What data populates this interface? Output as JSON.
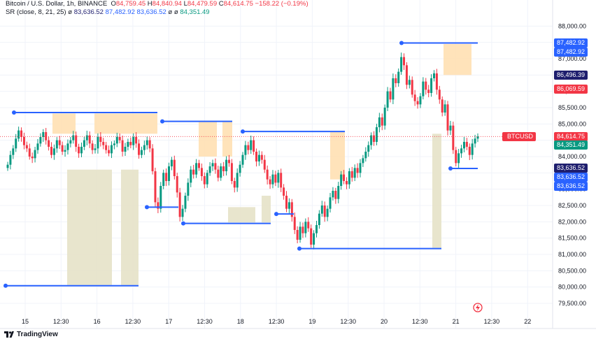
{
  "header": {
    "symbol": "Bitcoin / U.S. Dollar, 1h, BINANCE",
    "o_label": "O",
    "o_value": "84,759.45",
    "h_label": "H",
    "h_value": "84,840.94",
    "l_label": "L",
    "l_value": "84,479.59",
    "c_label": "C",
    "c_value": "84,614.75",
    "change": "−158.22 (−0.19%)",
    "indicator_name": "SR (close, 8, 21, 25)",
    "indicator_sep": "ø",
    "ind_v1": "83,636.52",
    "ind_v2": "87,482.92",
    "ind_v3": "83,636.52",
    "ind_v4": "ø",
    "ind_v5": "ø",
    "ind_v6": "84,351.49"
  },
  "branding": {
    "name": "TradingView"
  },
  "colors": {
    "up": "#089981",
    "down": "#f23645",
    "resistance": "#2962ff",
    "resistance_light": "#b2ddff",
    "zone_orange": "#ffe0b2",
    "zone_olive": "#e6e2c8",
    "accent_navy": "#1e1e6e"
  },
  "price_labels": [
    {
      "text": "87,482.92",
      "price": 87482.92,
      "bg": "#2962ff"
    },
    {
      "text": "87,482.92",
      "price": 87482.92,
      "bg": "#2962ff",
      "offset": 1
    },
    {
      "text": "86,496.39",
      "price": 86496.39,
      "bg": "#1e1e6e"
    },
    {
      "text": "86,069.59",
      "price": 86069.59,
      "bg": "#f23645"
    },
    {
      "text": "84,614.75",
      "price": 84614.75,
      "bg": "#f23645",
      "tag": "BTCUSD"
    },
    {
      "text": "84,351.49",
      "price": 84351.49,
      "bg": "#089981"
    },
    {
      "text": "83,636.52",
      "price": 83636.52,
      "bg": "#1e1e6e"
    },
    {
      "text": "83,636.52",
      "price": 83636.52,
      "bg": "#2962ff",
      "offset": 1
    },
    {
      "text": "83,636.52",
      "price": 83636.52,
      "bg": "#2962ff",
      "offset": 2
    }
  ],
  "chart_data": {
    "type": "candlestick",
    "y_ticks": [
      79500,
      80000,
      80500,
      81000,
      81500,
      82000,
      82500,
      83000,
      83500,
      84000,
      84500,
      85000,
      85500,
      86000,
      86500,
      87000,
      87500,
      88000
    ],
    "y_tick_labels": [
      "79,500.00",
      "80,000.00",
      "80,500.00",
      "81,000.00",
      "81,500.00",
      "82,000.00",
      "82,500.00",
      "83,000.00",
      "83,500.00",
      "84,000.00",
      "84,500.00",
      "85,000.00",
      "85,500.00",
      "86,000.00",
      "86,500.00",
      "87,000.00",
      "87,500.00",
      "88,000.00"
    ],
    "x_tick_labels": [
      "15",
      "12:30",
      "16",
      "12:30",
      "17",
      "12:30",
      "18",
      "12:30",
      "19",
      "12:30",
      "20",
      "12:30",
      "21",
      "12:30",
      "22"
    ],
    "ylim": [
      79200,
      88200
    ],
    "closes": [
      83750,
      84050,
      84250,
      84550,
      84800,
      84600,
      84350,
      84250,
      84000,
      83950,
      84200,
      84400,
      84600,
      84750,
      84500,
      84300,
      84050,
      84250,
      84500,
      84350,
      84150,
      84200,
      84400,
      84500,
      84650,
      84300,
      84100,
      84300,
      84500,
      84650,
      84400,
      84200,
      84250,
      84600,
      84450,
      84350,
      84200,
      84100,
      84350,
      84400,
      84600,
      84500,
      84150,
      84300,
      84450,
      84350,
      84600,
      84400,
      84050,
      84200,
      84350,
      84500,
      84250,
      83550,
      82600,
      82400,
      83100,
      83500,
      83250,
      83700,
      83900,
      83400,
      82900,
      82150,
      82400,
      82800,
      83200,
      83600,
      83450,
      83800,
      83650,
      83400,
      83150,
      83500,
      83700,
      83800,
      83600,
      83350,
      83700,
      83550,
      83900,
      83800,
      83250,
      83050,
      83500,
      83750,
      84050,
      84350,
      84200,
      84500,
      84150,
      83850,
      84050,
      83900,
      83600,
      83300,
      83150,
      83450,
      83200,
      83500,
      83050,
      82800,
      82400,
      82600,
      82150,
      81750,
      81450,
      81850,
      81650,
      82000,
      81800,
      81300,
      81650,
      81900,
      82250,
      82500,
      82150,
      82400,
      82750,
      82950,
      82700,
      83100,
      83450,
      83250,
      83150,
      83550,
      83350,
      83650,
      83500,
      83800,
      83950,
      84150,
      84350,
      84650,
      84450,
      84900,
      85200,
      84950,
      85500,
      86000,
      85750,
      86400,
      86250,
      86600,
      87050,
      86800,
      86200,
      86350,
      85900,
      85700,
      85600,
      85850,
      86300,
      86050,
      85950,
      86400,
      86550,
      86050,
      85750,
      85350,
      85600,
      84800,
      84950,
      84200,
      83800,
      84100,
      84250,
      84450,
      84300,
      84050,
      84400,
      84550,
      84614.75
    ],
    "sr_lines": [
      {
        "y": 85350,
        "x0": 20,
        "x1": 225,
        "color": "#2962ff"
      },
      {
        "y": 85080,
        "x0": 232,
        "x1": 332,
        "color": "#2962ff"
      },
      {
        "y": 84770,
        "x0": 347,
        "x1": 493,
        "color": "#2962ff"
      },
      {
        "y": 87482.92,
        "x0": 574,
        "x1": 683,
        "color": "#2962ff"
      },
      {
        "y": 82450,
        "x0": 210,
        "x1": 255,
        "color": "#2962ff"
      },
      {
        "y": 81950,
        "x0": 262,
        "x1": 387,
        "color": "#2962ff"
      },
      {
        "y": 82240,
        "x0": 395,
        "x1": 420,
        "color": "#2962ff"
      },
      {
        "y": 81180,
        "x0": 428,
        "x1": 631,
        "color": "#2962ff"
      },
      {
        "y": 83636.52,
        "x0": 644,
        "x1": 683,
        "color": "#2962ff"
      },
      {
        "y": 80040,
        "x0": 8,
        "x1": 198,
        "color": "#2962ff"
      }
    ],
    "zones": [
      {
        "y0": 84700,
        "y1": 85320,
        "x0": 75,
        "x1": 108,
        "color": "#ffe0b2"
      },
      {
        "y0": 84700,
        "y1": 85320,
        "x0": 135,
        "x1": 225,
        "color": "#ffe0b2"
      },
      {
        "y0": 84000,
        "y1": 85060,
        "x0": 284,
        "x1": 310,
        "color": "#ffe0b2"
      },
      {
        "y0": 84000,
        "y1": 85060,
        "x0": 318,
        "x1": 332,
        "color": "#ffe0b2"
      },
      {
        "y0": 83300,
        "y1": 84750,
        "x0": 472,
        "x1": 493,
        "color": "#ffe0b2"
      },
      {
        "y0": 86500,
        "y1": 87450,
        "x0": 634,
        "x1": 674,
        "color": "#ffe0b2"
      },
      {
        "y0": 80060,
        "y1": 83600,
        "x0": 96,
        "x1": 160,
        "color": "#e6e2c8"
      },
      {
        "y0": 80060,
        "y1": 83600,
        "x0": 173,
        "x1": 198,
        "color": "#e6e2c8"
      },
      {
        "y0": 81980,
        "y1": 82450,
        "x0": 326,
        "x1": 365,
        "color": "#e6e2c8"
      },
      {
        "y0": 81980,
        "y1": 82800,
        "x0": 374,
        "x1": 387,
        "color": "#e6e2c8"
      },
      {
        "y0": 81200,
        "y1": 84700,
        "x0": 618,
        "x1": 631,
        "color": "#e6e2c8"
      }
    ]
  }
}
